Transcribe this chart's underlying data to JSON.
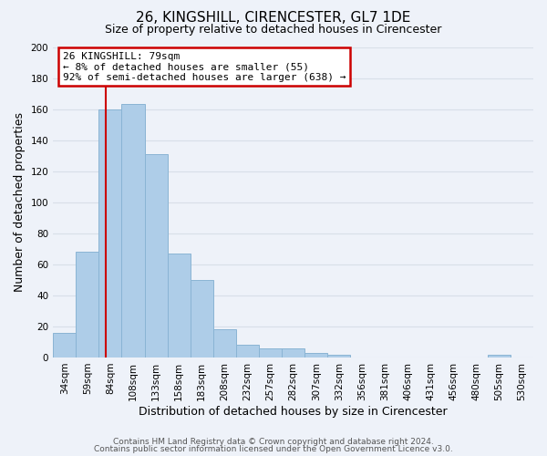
{
  "title": "26, KINGSHILL, CIRENCESTER, GL7 1DE",
  "subtitle": "Size of property relative to detached houses in Cirencester",
  "xlabel": "Distribution of detached houses by size in Cirencester",
  "ylabel": "Number of detached properties",
  "bar_color": "#aecde8",
  "bar_edge_color": "#8ab4d4",
  "bins": [
    "34sqm",
    "59sqm",
    "84sqm",
    "108sqm",
    "133sqm",
    "158sqm",
    "183sqm",
    "208sqm",
    "232sqm",
    "257sqm",
    "282sqm",
    "307sqm",
    "332sqm",
    "356sqm",
    "381sqm",
    "406sqm",
    "431sqm",
    "456sqm",
    "480sqm",
    "505sqm",
    "530sqm"
  ],
  "values": [
    16,
    68,
    160,
    163,
    131,
    67,
    50,
    18,
    8,
    6,
    6,
    3,
    2,
    0,
    0,
    0,
    0,
    0,
    0,
    2,
    0
  ],
  "bin_edges_numeric": [
    34,
    59,
    84,
    108,
    133,
    158,
    183,
    208,
    232,
    257,
    282,
    307,
    332,
    356,
    381,
    406,
    431,
    456,
    480,
    505,
    530
  ],
  "annotation_text": "26 KINGSHILL: 79sqm\n← 8% of detached houses are smaller (55)\n92% of semi-detached houses are larger (638) →",
  "annotation_box_color": "#ffffff",
  "annotation_box_edge": "#cc0000",
  "vline_color": "#cc0000",
  "ylim": [
    0,
    200
  ],
  "yticks": [
    0,
    20,
    40,
    60,
    80,
    100,
    120,
    140,
    160,
    180,
    200
  ],
  "footer1": "Contains HM Land Registry data © Crown copyright and database right 2024.",
  "footer2": "Contains public sector information licensed under the Open Government Licence v3.0.",
  "bg_color": "#eef2f9",
  "grid_color": "#d8dfe8",
  "title_fontsize": 11,
  "subtitle_fontsize": 9,
  "axis_label_fontsize": 9,
  "tick_fontsize": 7.5,
  "footer_fontsize": 6.5,
  "annotation_fontsize": 8
}
